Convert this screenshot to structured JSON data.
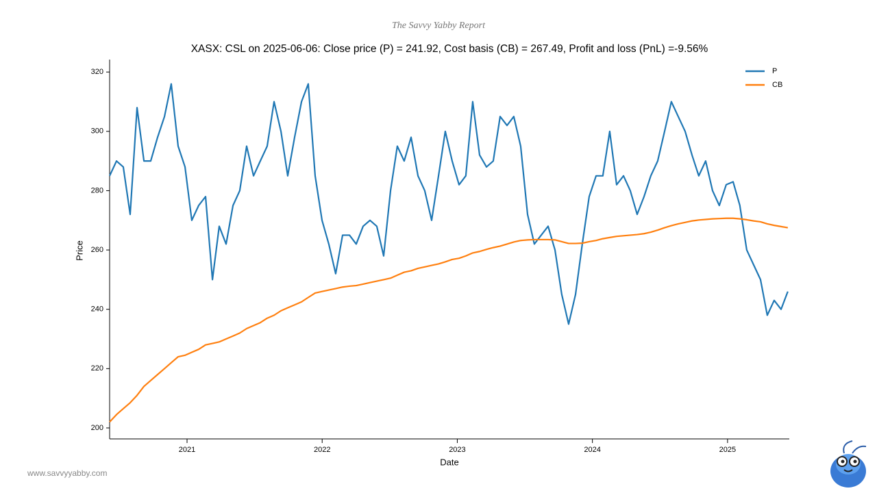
{
  "header": "The Savvy Yabby Report",
  "footer": "www.savvyyabby.com",
  "chart_data": {
    "type": "line",
    "title": "XASX: CSL on 2025-06-06: Close price (P) = 241.92, Cost basis (CB) = 267.49, Profit and loss (PnL) =-9.56%",
    "x_label": "Date",
    "y_label": "Price",
    "x": [
      2020.427,
      2020.478,
      2020.528,
      2020.579,
      2020.63,
      2020.681,
      2020.731,
      2020.782,
      2020.833,
      2020.883,
      2020.934,
      2020.985,
      2021.035,
      2021.086,
      2021.137,
      2021.188,
      2021.238,
      2021.289,
      2021.34,
      2021.39,
      2021.441,
      2021.492,
      2021.542,
      2021.593,
      2021.644,
      2021.695,
      2021.745,
      2021.796,
      2021.847,
      2021.897,
      2021.948,
      2021.999,
      2022.049,
      2022.1,
      2022.151,
      2022.202,
      2022.252,
      2022.303,
      2022.354,
      2022.404,
      2022.455,
      2022.506,
      2022.556,
      2022.607,
      2022.658,
      2022.709,
      2022.759,
      2022.81,
      2022.861,
      2022.911,
      2022.962,
      2023.013,
      2023.063,
      2023.114,
      2023.165,
      2023.216,
      2023.266,
      2023.317,
      2023.368,
      2023.418,
      2023.469,
      2023.52,
      2023.57,
      2023.621,
      2023.672,
      2023.723,
      2023.773,
      2023.824,
      2023.875,
      2023.925,
      2023.976,
      2024.027,
      2024.077,
      2024.128,
      2024.179,
      2024.23,
      2024.28,
      2024.331,
      2024.382,
      2024.432,
      2024.483,
      2024.534,
      2024.584,
      2024.635,
      2024.686,
      2024.737,
      2024.787,
      2024.838,
      2024.889,
      2024.939,
      2024.99,
      2025.041,
      2025.091,
      2025.142,
      2025.193,
      2025.244,
      2025.294,
      2025.345,
      2025.396,
      2025.446
    ],
    "series": [
      {
        "name": "P",
        "color": "#1f77b4",
        "values": [
          285,
          290,
          288,
          272,
          308,
          290,
          290,
          298,
          305,
          316,
          295,
          288,
          270,
          275,
          278,
          250,
          268,
          262,
          275,
          280,
          295,
          285,
          290,
          295,
          310,
          300,
          285,
          298,
          310,
          316,
          285,
          270,
          262,
          252,
          265,
          265,
          262,
          268,
          270,
          268,
          258,
          280,
          295,
          290,
          298,
          285,
          280,
          270,
          285,
          300,
          290,
          282,
          285,
          310,
          292,
          288,
          290,
          305,
          302,
          305,
          295,
          272,
          262,
          265,
          268,
          260,
          245,
          235,
          245,
          262,
          278,
          285,
          285,
          300,
          282,
          285,
          280,
          272,
          278,
          285,
          290,
          300,
          310,
          305,
          300,
          292,
          285,
          290,
          280,
          275,
          282,
          283,
          275,
          260,
          255,
          250,
          238,
          243,
          240,
          246
        ]
      },
      {
        "name": "CB",
        "color": "#ff7f0e",
        "values": [
          202,
          204.5,
          206.5,
          208.5,
          211,
          214,
          216,
          218,
          220,
          222,
          224,
          224.5,
          225.5,
          226.5,
          228,
          228.5,
          229,
          230,
          231,
          232,
          233.5,
          234.5,
          235.5,
          237,
          238,
          239.5,
          240.5,
          241.5,
          242.5,
          244,
          245.5,
          246,
          246.5,
          247,
          247.5,
          247.8,
          248,
          248.5,
          249,
          249.5,
          250,
          250.5,
          251.5,
          252.5,
          253,
          253.8,
          254.3,
          254.8,
          255.3,
          256,
          256.8,
          257.2,
          258,
          259,
          259.5,
          260.2,
          260.8,
          261.3,
          262,
          262.7,
          263.2,
          263.4,
          263.5,
          263.5,
          263.5,
          263.4,
          262.8,
          262.2,
          262.2,
          262.3,
          262.8,
          263.2,
          263.8,
          264.2,
          264.6,
          264.8,
          265,
          265.2,
          265.5,
          266,
          266.7,
          267.5,
          268.2,
          268.8,
          269.3,
          269.8,
          270.1,
          270.3,
          270.5,
          270.6,
          270.7,
          270.7,
          270.5,
          270.2,
          269.8,
          269.5,
          268.8,
          268.3,
          267.9,
          267.5
        ]
      }
    ],
    "xlim": [
      2020.427,
      2025.457
    ],
    "xticks": [
      2021,
      2022,
      2023,
      2024,
      2025
    ],
    "ylim": [
      196.3,
      324.2
    ],
    "yticks": [
      200,
      220,
      240,
      260,
      280,
      300,
      320
    ],
    "grid": false,
    "legend": "upper right"
  }
}
